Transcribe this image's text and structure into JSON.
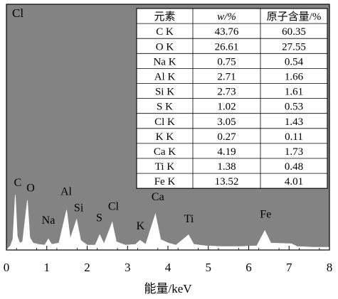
{
  "chart_data": {
    "type": "area",
    "corner_label": "Cl",
    "xlabel": "能量/keV",
    "xlim": [
      0,
      8
    ],
    "x_ticks": [
      "0",
      "1",
      "2",
      "3",
      "4",
      "5",
      "6",
      "7",
      "8"
    ],
    "background_color": "#838383",
    "spectrum_color": "#ffffff",
    "spectrum": [
      [
        0.0,
        0.0
      ],
      [
        0.1,
        0.06
      ],
      [
        0.16,
        0.16
      ],
      [
        0.22,
        0.8
      ],
      [
        0.27,
        0.2
      ],
      [
        0.33,
        0.1
      ],
      [
        0.4,
        0.12
      ],
      [
        0.52,
        0.72
      ],
      [
        0.58,
        0.18
      ],
      [
        0.66,
        0.1
      ],
      [
        0.8,
        0.08
      ],
      [
        0.95,
        0.07
      ],
      [
        1.04,
        0.16
      ],
      [
        1.12,
        0.08
      ],
      [
        1.3,
        0.1
      ],
      [
        1.49,
        0.58
      ],
      [
        1.58,
        0.16
      ],
      [
        1.74,
        0.44
      ],
      [
        1.84,
        0.14
      ],
      [
        2.0,
        0.07
      ],
      [
        2.2,
        0.07
      ],
      [
        2.31,
        0.22
      ],
      [
        2.42,
        0.09
      ],
      [
        2.62,
        0.4
      ],
      [
        2.72,
        0.12
      ],
      [
        2.95,
        0.07
      ],
      [
        3.2,
        0.08
      ],
      [
        3.31,
        0.14
      ],
      [
        3.45,
        0.08
      ],
      [
        3.69,
        0.52
      ],
      [
        3.82,
        0.15
      ],
      [
        4.01,
        0.1
      ],
      [
        4.2,
        0.07
      ],
      [
        4.51,
        0.22
      ],
      [
        4.64,
        0.08
      ],
      [
        4.93,
        0.06
      ],
      [
        5.3,
        0.05
      ],
      [
        5.8,
        0.05
      ],
      [
        6.2,
        0.06
      ],
      [
        6.4,
        0.28
      ],
      [
        6.55,
        0.1
      ],
      [
        7.06,
        0.09
      ],
      [
        7.2,
        0.05
      ],
      [
        7.6,
        0.04
      ],
      [
        8.0,
        0.04
      ]
    ],
    "peak_labels": [
      {
        "text": "C",
        "x": 0.28,
        "y": 0.93
      },
      {
        "text": "O",
        "x": 0.6,
        "y": 0.85
      },
      {
        "text": "Na",
        "x": 1.04,
        "y": 0.38
      },
      {
        "text": "Al",
        "x": 1.48,
        "y": 0.8
      },
      {
        "text": "Si",
        "x": 1.79,
        "y": 0.56
      },
      {
        "text": "S",
        "x": 2.3,
        "y": 0.42
      },
      {
        "text": "Cl",
        "x": 2.65,
        "y": 0.58
      },
      {
        "text": "K",
        "x": 3.32,
        "y": 0.3
      },
      {
        "text": "Ca",
        "x": 3.75,
        "y": 0.72
      },
      {
        "text": "Ti",
        "x": 4.52,
        "y": 0.4
      },
      {
        "text": "Fe",
        "x": 6.42,
        "y": 0.47
      }
    ],
    "table": {
      "headers": [
        "元素",
        "w/%",
        "原子含量/%"
      ],
      "rows": [
        [
          "C K",
          "43.76",
          "60.35"
        ],
        [
          "O K",
          "26.61",
          "27.55"
        ],
        [
          "Na K",
          "0.75",
          "0.54"
        ],
        [
          "Al K",
          "2.71",
          "1.66"
        ],
        [
          "Si K",
          "2.73",
          "1.61"
        ],
        [
          "S K",
          "1.02",
          "0.53"
        ],
        [
          "Cl K",
          "3.05",
          "1.43"
        ],
        [
          "K K",
          "0.27",
          "0.11"
        ],
        [
          "Ca K",
          "4.19",
          "1.73"
        ],
        [
          "Ti K",
          "1.38",
          "0.48"
        ],
        [
          "Fe K",
          "13.52",
          "4.01"
        ]
      ]
    }
  }
}
